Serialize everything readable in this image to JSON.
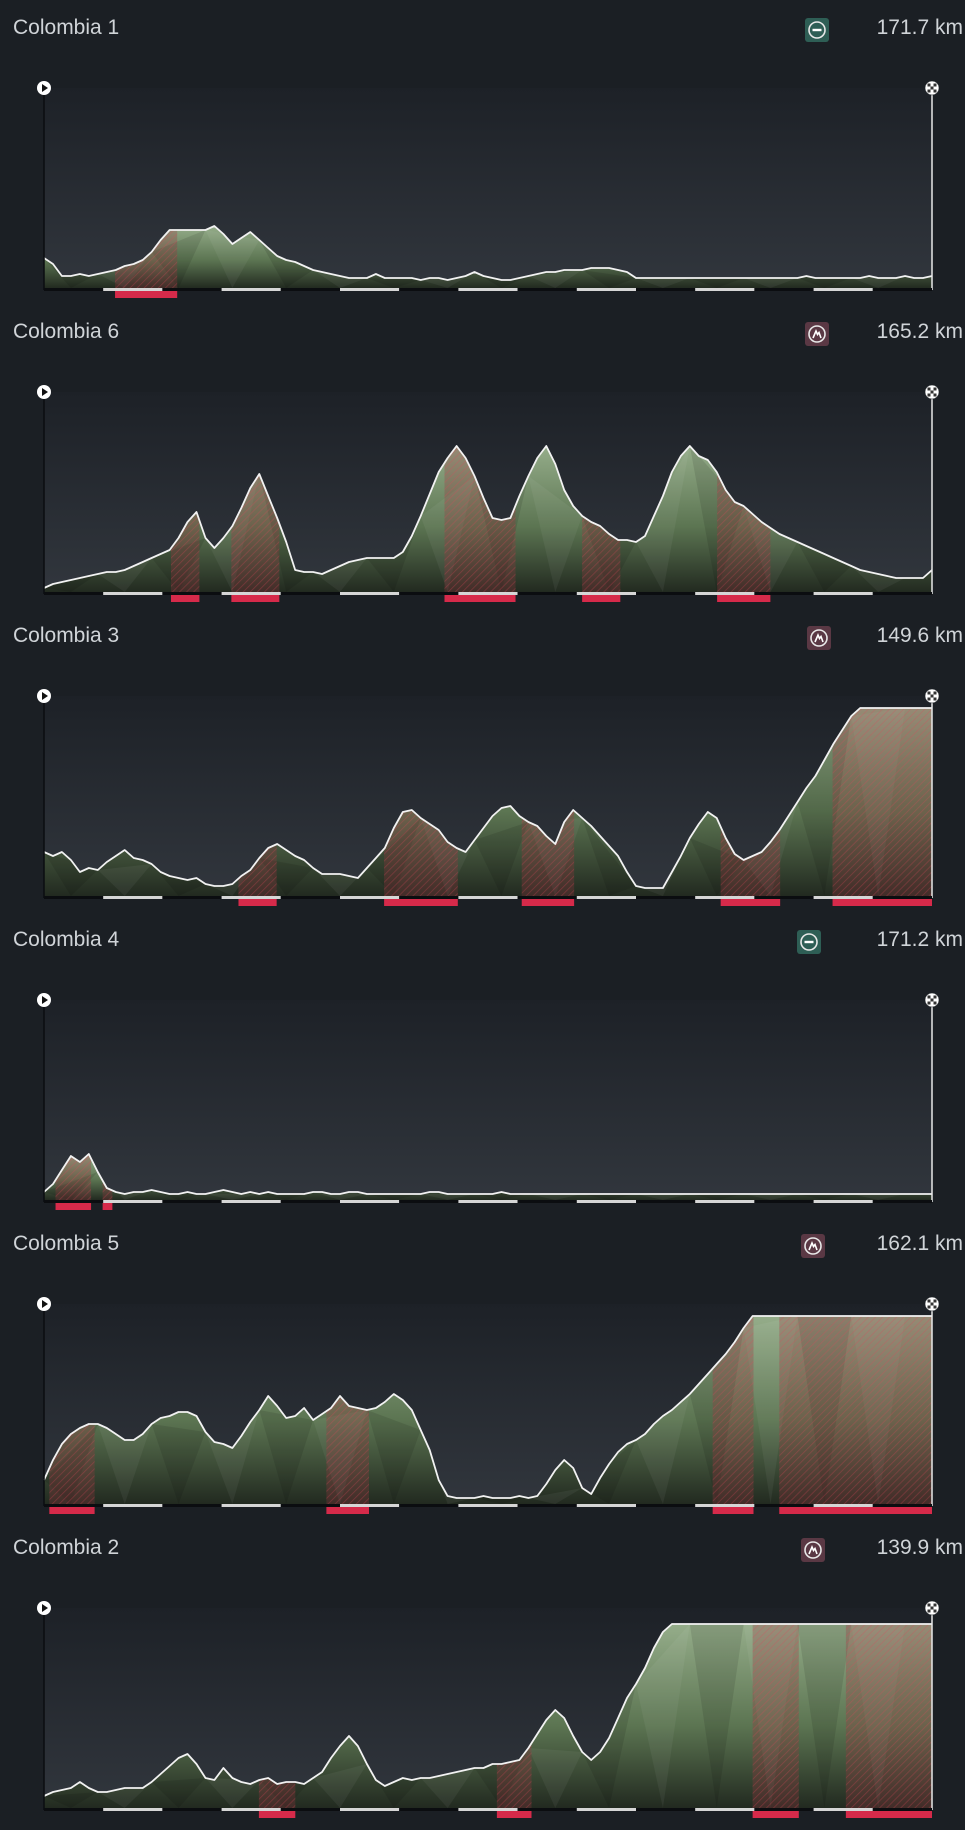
{
  "stages": [
    {
      "name": "Colombia 1",
      "distance": "171.7 km",
      "type_icon": "flat-stage-icon",
      "icon_color": "#2e5e55",
      "icon_x": 805,
      "elev": [
        0.15,
        0.12,
        0.06,
        0.06,
        0.07,
        0.06,
        0.07,
        0.08,
        0.09,
        0.11,
        0.12,
        0.14,
        0.18,
        0.24,
        0.29,
        0.29,
        0.29,
        0.29,
        0.29,
        0.31,
        0.27,
        0.22,
        0.25,
        0.28,
        0.24,
        0.2,
        0.16,
        0.14,
        0.13,
        0.11,
        0.09,
        0.08,
        0.07,
        0.06,
        0.05,
        0.05,
        0.05,
        0.07,
        0.05,
        0.05,
        0.05,
        0.05,
        0.04,
        0.05,
        0.05,
        0.04,
        0.05,
        0.06,
        0.08,
        0.06,
        0.05,
        0.04,
        0.04,
        0.05,
        0.06,
        0.07,
        0.08,
        0.08,
        0.09,
        0.09,
        0.09,
        0.1,
        0.1,
        0.1,
        0.09,
        0.08,
        0.05,
        0.05,
        0.05,
        0.05,
        0.05,
        0.05,
        0.05,
        0.05,
        0.05,
        0.05,
        0.05,
        0.05,
        0.05,
        0.05,
        0.05,
        0.05,
        0.05,
        0.05,
        0.05,
        0.06,
        0.05,
        0.05,
        0.05,
        0.05,
        0.05,
        0.05,
        0.06,
        0.05,
        0.05,
        0.05,
        0.06,
        0.05,
        0.05,
        0.06
      ],
      "climbs": [
        [
          0.08,
          0.15
        ]
      ]
    },
    {
      "name": "Colombia 6",
      "distance": "165.2 km",
      "type_icon": "mountain-stage-icon",
      "icon_color": "#5a3844",
      "icon_x": 805,
      "elev": [
        0.02,
        0.04,
        0.05,
        0.06,
        0.07,
        0.08,
        0.09,
        0.1,
        0.1,
        0.11,
        0.13,
        0.15,
        0.17,
        0.19,
        0.21,
        0.27,
        0.35,
        0.4,
        0.27,
        0.22,
        0.27,
        0.33,
        0.42,
        0.52,
        0.59,
        0.48,
        0.37,
        0.25,
        0.11,
        0.1,
        0.1,
        0.09,
        0.11,
        0.13,
        0.15,
        0.16,
        0.17,
        0.17,
        0.17,
        0.17,
        0.2,
        0.28,
        0.38,
        0.49,
        0.6,
        0.67,
        0.73,
        0.67,
        0.58,
        0.47,
        0.37,
        0.36,
        0.37,
        0.48,
        0.58,
        0.67,
        0.73,
        0.64,
        0.51,
        0.43,
        0.38,
        0.35,
        0.33,
        0.29,
        0.26,
        0.26,
        0.25,
        0.28,
        0.38,
        0.48,
        0.6,
        0.68,
        0.73,
        0.68,
        0.66,
        0.6,
        0.51,
        0.45,
        0.43,
        0.39,
        0.35,
        0.32,
        0.29,
        0.27,
        0.25,
        0.23,
        0.21,
        0.19,
        0.17,
        0.15,
        0.13,
        0.11,
        0.1,
        0.09,
        0.08,
        0.07,
        0.07,
        0.07,
        0.07,
        0.11
      ],
      "climbs": [
        [
          0.143,
          0.175
        ],
        [
          0.211,
          0.265
        ],
        [
          0.451,
          0.531
        ],
        [
          0.606,
          0.649
        ],
        [
          0.758,
          0.818
        ]
      ]
    },
    {
      "name": "Colombia 3",
      "distance": "149.6 km",
      "type_icon": "mountain-stage-icon",
      "icon_color": "#5a3844",
      "icon_x": 807,
      "elev": [
        0.22,
        0.2,
        0.22,
        0.18,
        0.12,
        0.14,
        0.13,
        0.17,
        0.2,
        0.23,
        0.19,
        0.18,
        0.16,
        0.12,
        0.1,
        0.09,
        0.08,
        0.09,
        0.06,
        0.05,
        0.05,
        0.06,
        0.1,
        0.13,
        0.19,
        0.24,
        0.26,
        0.23,
        0.2,
        0.18,
        0.14,
        0.11,
        0.11,
        0.11,
        0.1,
        0.09,
        0.14,
        0.19,
        0.24,
        0.34,
        0.42,
        0.43,
        0.39,
        0.36,
        0.33,
        0.27,
        0.24,
        0.22,
        0.28,
        0.34,
        0.4,
        0.44,
        0.45,
        0.4,
        0.37,
        0.35,
        0.3,
        0.26,
        0.37,
        0.43,
        0.39,
        0.35,
        0.3,
        0.25,
        0.2,
        0.12,
        0.05,
        0.04,
        0.04,
        0.04,
        0.12,
        0.2,
        0.29,
        0.36,
        0.42,
        0.39,
        0.29,
        0.21,
        0.18,
        0.2,
        0.22,
        0.27,
        0.33,
        0.4,
        0.47,
        0.54,
        0.6,
        0.68,
        0.76,
        0.83,
        0.9,
        0.94,
        0.94,
        0.94,
        0.94,
        0.94,
        0.94,
        0.94,
        0.94,
        0.94
      ],
      "climbs": [
        [
          0.219,
          0.262
        ],
        [
          0.383,
          0.466
        ],
        [
          0.538,
          0.597
        ],
        [
          0.762,
          0.829
        ],
        [
          0.888,
          1.0
        ]
      ]
    },
    {
      "name": "Colombia 4",
      "distance": "171.2 km",
      "type_icon": "flat-stage-icon",
      "icon_color": "#2e5e55",
      "icon_x": 797,
      "elev": [
        0.04,
        0.08,
        0.15,
        0.22,
        0.19,
        0.23,
        0.14,
        0.06,
        0.04,
        0.03,
        0.04,
        0.04,
        0.05,
        0.04,
        0.03,
        0.03,
        0.04,
        0.03,
        0.03,
        0.04,
        0.05,
        0.04,
        0.03,
        0.04,
        0.03,
        0.04,
        0.03,
        0.03,
        0.03,
        0.03,
        0.04,
        0.04,
        0.03,
        0.03,
        0.04,
        0.04,
        0.03,
        0.03,
        0.03,
        0.03,
        0.03,
        0.03,
        0.03,
        0.04,
        0.04,
        0.03,
        0.03,
        0.03,
        0.03,
        0.03,
        0.03,
        0.04,
        0.03,
        0.03,
        0.03,
        0.03,
        0.03,
        0.03,
        0.03,
        0.03,
        0.03,
        0.03,
        0.03,
        0.03,
        0.03,
        0.03,
        0.03,
        0.03,
        0.03,
        0.03,
        0.03,
        0.03,
        0.03,
        0.03,
        0.03,
        0.03,
        0.03,
        0.03,
        0.03,
        0.03,
        0.03,
        0.03,
        0.03,
        0.03,
        0.03,
        0.03,
        0.03,
        0.03,
        0.03,
        0.03,
        0.03,
        0.03,
        0.03,
        0.03,
        0.03,
        0.03,
        0.03,
        0.03,
        0.03,
        0.03
      ],
      "climbs": [
        [
          0.013,
          0.053
        ],
        [
          0.066,
          0.077
        ]
      ]
    },
    {
      "name": "Colombia 5",
      "distance": "162.1 km",
      "type_icon": "mountain-stage-icon",
      "icon_color": "#5a3844",
      "icon_x": 801,
      "elev": [
        0.12,
        0.22,
        0.3,
        0.35,
        0.38,
        0.4,
        0.4,
        0.38,
        0.35,
        0.32,
        0.32,
        0.35,
        0.4,
        0.43,
        0.44,
        0.46,
        0.46,
        0.44,
        0.36,
        0.31,
        0.3,
        0.28,
        0.34,
        0.41,
        0.47,
        0.54,
        0.49,
        0.43,
        0.44,
        0.48,
        0.42,
        0.45,
        0.48,
        0.54,
        0.49,
        0.48,
        0.47,
        0.48,
        0.51,
        0.55,
        0.52,
        0.47,
        0.37,
        0.27,
        0.12,
        0.04,
        0.03,
        0.03,
        0.03,
        0.04,
        0.03,
        0.03,
        0.03,
        0.04,
        0.03,
        0.04,
        0.1,
        0.17,
        0.22,
        0.18,
        0.08,
        0.05,
        0.13,
        0.2,
        0.26,
        0.3,
        0.32,
        0.35,
        0.4,
        0.44,
        0.47,
        0.51,
        0.55,
        0.6,
        0.65,
        0.7,
        0.75,
        0.81,
        0.88,
        0.94,
        0.94,
        0.94,
        0.94,
        0.94,
        0.94,
        0.94,
        0.94,
        0.94,
        0.94,
        0.94,
        0.94,
        0.94,
        0.94,
        0.94,
        0.94,
        0.94,
        0.94,
        0.94,
        0.94,
        0.94
      ],
      "climbs": [
        [
          0.006,
          0.057
        ],
        [
          0.318,
          0.366
        ],
        [
          0.753,
          0.799
        ],
        [
          0.828,
          1.0
        ]
      ]
    },
    {
      "name": "Colombia 2",
      "distance": "139.9 km",
      "type_icon": "mountain-stage-icon",
      "icon_color": "#5a3844",
      "icon_x": 801,
      "elev": [
        0.06,
        0.08,
        0.09,
        0.1,
        0.13,
        0.1,
        0.08,
        0.08,
        0.09,
        0.1,
        0.1,
        0.1,
        0.13,
        0.17,
        0.21,
        0.25,
        0.27,
        0.22,
        0.15,
        0.14,
        0.2,
        0.15,
        0.13,
        0.12,
        0.14,
        0.15,
        0.12,
        0.13,
        0.13,
        0.12,
        0.15,
        0.18,
        0.25,
        0.31,
        0.36,
        0.31,
        0.22,
        0.14,
        0.11,
        0.13,
        0.15,
        0.14,
        0.15,
        0.15,
        0.16,
        0.17,
        0.18,
        0.19,
        0.2,
        0.2,
        0.22,
        0.22,
        0.23,
        0.24,
        0.3,
        0.37,
        0.44,
        0.49,
        0.45,
        0.36,
        0.28,
        0.24,
        0.28,
        0.35,
        0.45,
        0.55,
        0.62,
        0.7,
        0.8,
        0.88,
        0.92,
        0.92,
        0.92,
        0.92,
        0.92,
        0.92,
        0.92,
        0.92,
        0.92,
        0.92,
        0.92,
        0.92,
        0.92,
        0.92,
        0.92,
        0.92,
        0.92,
        0.92,
        0.92,
        0.92,
        0.92,
        0.92,
        0.92,
        0.92,
        0.92,
        0.92,
        0.92,
        0.92,
        0.92,
        0.92
      ],
      "climbs": [
        [
          0.242,
          0.283
        ],
        [
          0.51,
          0.549
        ],
        [
          0.798,
          0.85
        ],
        [
          0.903,
          1.0
        ]
      ]
    }
  ]
}
